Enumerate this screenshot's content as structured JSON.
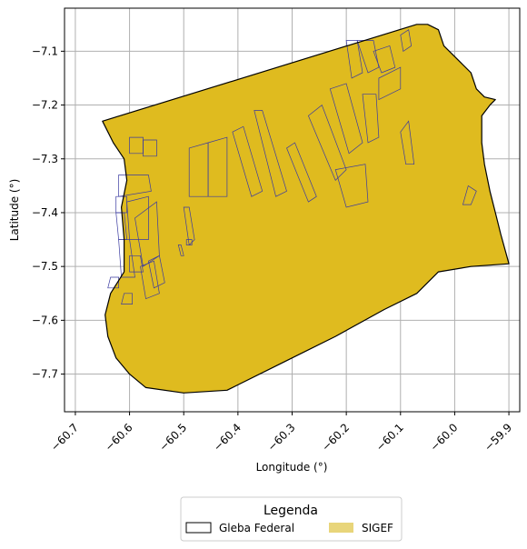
{
  "chart_data": {
    "type": "map",
    "xlabel": "Longitude (°)",
    "ylabel": "Latitude (°)",
    "xlim": [
      -60.72,
      -59.88
    ],
    "ylim": [
      -7.77,
      -7.02
    ],
    "grid": true,
    "xticks": [
      {
        "value": -60.7,
        "label": "−60.7"
      },
      {
        "value": -60.6,
        "label": "−60.6"
      },
      {
        "value": -60.5,
        "label": "−60.5"
      },
      {
        "value": -60.4,
        "label": "−60.4"
      },
      {
        "value": -60.3,
        "label": "−60.3"
      },
      {
        "value": -60.2,
        "label": "−60.2"
      },
      {
        "value": -60.1,
        "label": "−60.1"
      },
      {
        "value": -60.0,
        "label": "−60.0"
      },
      {
        "value": -59.9,
        "label": "−59.9"
      }
    ],
    "yticks": [
      {
        "value": -7.1,
        "label": "−7.1"
      },
      {
        "value": -7.2,
        "label": "−7.2"
      },
      {
        "value": -7.3,
        "label": "−7.3"
      },
      {
        "value": -7.4,
        "label": "−7.4"
      },
      {
        "value": -7.5,
        "label": "−7.5"
      },
      {
        "value": -7.6,
        "label": "−7.6"
      },
      {
        "value": -7.7,
        "label": "−7.7"
      }
    ],
    "colors": {
      "sigef_fill": "#dfbb1f",
      "sigef_edge": "#3a3aa0",
      "gleba_edge": "#000000",
      "grid": "#b0b0b0",
      "legend_sigef": "#e8d57a"
    },
    "gleba_boundary": [
      [
        -60.65,
        -7.23
      ],
      [
        -60.07,
        -7.05
      ],
      [
        -60.05,
        -7.05
      ],
      [
        -60.03,
        -7.06
      ],
      [
        -60.02,
        -7.09
      ],
      [
        -59.99,
        -7.12
      ],
      [
        -59.97,
        -7.14
      ],
      [
        -59.96,
        -7.17
      ],
      [
        -59.945,
        -7.185
      ],
      [
        -59.925,
        -7.19
      ],
      [
        -59.935,
        -7.2
      ],
      [
        -59.95,
        -7.22
      ],
      [
        -59.95,
        -7.27
      ],
      [
        -59.945,
        -7.31
      ],
      [
        -59.935,
        -7.36
      ],
      [
        -59.925,
        -7.4
      ],
      [
        -59.915,
        -7.44
      ],
      [
        -59.9,
        -7.495
      ],
      [
        -59.97,
        -7.5
      ],
      [
        -60.03,
        -7.51
      ],
      [
        -60.07,
        -7.55
      ],
      [
        -60.13,
        -7.58
      ],
      [
        -60.22,
        -7.63
      ],
      [
        -60.32,
        -7.68
      ],
      [
        -60.4,
        -7.72
      ],
      [
        -60.42,
        -7.73
      ],
      [
        -60.5,
        -7.735
      ],
      [
        -60.57,
        -7.725
      ],
      [
        -60.6,
        -7.7
      ],
      [
        -60.625,
        -7.67
      ],
      [
        -60.64,
        -7.63
      ],
      [
        -60.645,
        -7.59
      ],
      [
        -60.635,
        -7.55
      ],
      [
        -60.61,
        -7.51
      ],
      [
        -60.61,
        -7.45
      ],
      [
        -60.615,
        -7.39
      ],
      [
        -60.605,
        -7.34
      ],
      [
        -60.61,
        -7.3
      ],
      [
        -60.63,
        -7.27
      ],
      [
        -60.65,
        -7.23
      ]
    ],
    "sigef_parcels": [
      [
        [
          -60.6,
          -7.26
        ],
        [
          -60.575,
          -7.26
        ],
        [
          -60.575,
          -7.29
        ],
        [
          -60.6,
          -7.29
        ]
      ],
      [
        [
          -60.575,
          -7.265
        ],
        [
          -60.55,
          -7.265
        ],
        [
          -60.55,
          -7.295
        ],
        [
          -60.575,
          -7.295
        ]
      ],
      [
        [
          -60.49,
          -7.28
        ],
        [
          -60.455,
          -7.27
        ],
        [
          -60.455,
          -7.37
        ],
        [
          -60.49,
          -7.37
        ]
      ],
      [
        [
          -60.455,
          -7.27
        ],
        [
          -60.42,
          -7.26
        ],
        [
          -60.42,
          -7.37
        ],
        [
          -60.455,
          -7.37
        ]
      ],
      [
        [
          -60.41,
          -7.25
        ],
        [
          -60.39,
          -7.24
        ],
        [
          -60.355,
          -7.36
        ],
        [
          -60.375,
          -7.37
        ]
      ],
      [
        [
          -60.37,
          -7.21
        ],
        [
          -60.355,
          -7.21
        ],
        [
          -60.31,
          -7.36
        ],
        [
          -60.33,
          -7.37
        ]
      ],
      [
        [
          -60.31,
          -7.28
        ],
        [
          -60.295,
          -7.27
        ],
        [
          -60.255,
          -7.37
        ],
        [
          -60.27,
          -7.38
        ]
      ],
      [
        [
          -60.27,
          -7.22
        ],
        [
          -60.245,
          -7.2
        ],
        [
          -60.2,
          -7.32
        ],
        [
          -60.22,
          -7.34
        ]
      ],
      [
        [
          -60.23,
          -7.17
        ],
        [
          -60.2,
          -7.16
        ],
        [
          -60.17,
          -7.27
        ],
        [
          -60.195,
          -7.29
        ]
      ],
      [
        [
          -60.22,
          -7.32
        ],
        [
          -60.165,
          -7.31
        ],
        [
          -60.16,
          -7.38
        ],
        [
          -60.2,
          -7.39
        ]
      ],
      [
        [
          -60.2,
          -7.08
        ],
        [
          -60.18,
          -7.08
        ],
        [
          -60.17,
          -7.14
        ],
        [
          -60.19,
          -7.15
        ]
      ],
      [
        [
          -60.18,
          -7.08
        ],
        [
          -60.15,
          -7.08
        ],
        [
          -60.14,
          -7.13
        ],
        [
          -60.16,
          -7.14
        ]
      ],
      [
        [
          -60.15,
          -7.1
        ],
        [
          -60.12,
          -7.09
        ],
        [
          -60.11,
          -7.13
        ],
        [
          -60.135,
          -7.14
        ]
      ],
      [
        [
          -60.14,
          -7.15
        ],
        [
          -60.1,
          -7.13
        ],
        [
          -60.1,
          -7.17
        ],
        [
          -60.14,
          -7.19
        ]
      ],
      [
        [
          -60.17,
          -7.18
        ],
        [
          -60.145,
          -7.18
        ],
        [
          -60.14,
          -7.26
        ],
        [
          -60.16,
          -7.27
        ]
      ],
      [
        [
          -60.1,
          -7.07
        ],
        [
          -60.085,
          -7.06
        ],
        [
          -60.08,
          -7.09
        ],
        [
          -60.095,
          -7.1
        ]
      ],
      [
        [
          -60.1,
          -7.25
        ],
        [
          -60.085,
          -7.23
        ],
        [
          -60.075,
          -7.31
        ],
        [
          -60.09,
          -7.31
        ]
      ],
      [
        [
          -59.975,
          -7.35
        ],
        [
          -59.96,
          -7.36
        ],
        [
          -59.97,
          -7.385
        ],
        [
          -59.985,
          -7.385
        ]
      ],
      [
        [
          -60.62,
          -7.33
        ],
        [
          -60.565,
          -7.33
        ],
        [
          -60.56,
          -7.36
        ],
        [
          -60.62,
          -7.37
        ]
      ],
      [
        [
          -60.625,
          -7.37
        ],
        [
          -60.605,
          -7.37
        ],
        [
          -60.605,
          -7.4
        ],
        [
          -60.625,
          -7.4
        ]
      ],
      [
        [
          -60.605,
          -7.38
        ],
        [
          -60.565,
          -7.37
        ],
        [
          -60.565,
          -7.45
        ],
        [
          -60.6,
          -7.45
        ]
      ],
      [
        [
          -60.625,
          -7.4
        ],
        [
          -60.61,
          -7.4
        ],
        [
          -60.605,
          -7.45
        ],
        [
          -60.62,
          -7.45
        ]
      ],
      [
        [
          -60.62,
          -7.45
        ],
        [
          -60.6,
          -7.45
        ],
        [
          -60.59,
          -7.52
        ],
        [
          -60.615,
          -7.52
        ]
      ],
      [
        [
          -60.59,
          -7.41
        ],
        [
          -60.55,
          -7.38
        ],
        [
          -60.545,
          -7.48
        ],
        [
          -60.575,
          -7.5
        ]
      ],
      [
        [
          -60.6,
          -7.48
        ],
        [
          -60.58,
          -7.48
        ],
        [
          -60.575,
          -7.51
        ],
        [
          -60.6,
          -7.51
        ]
      ],
      [
        [
          -60.58,
          -7.5
        ],
        [
          -60.555,
          -7.49
        ],
        [
          -60.545,
          -7.55
        ],
        [
          -60.57,
          -7.56
        ]
      ],
      [
        [
          -60.565,
          -7.49
        ],
        [
          -60.545,
          -7.48
        ],
        [
          -60.535,
          -7.53
        ],
        [
          -60.555,
          -7.54
        ]
      ],
      [
        [
          -60.61,
          -7.55
        ],
        [
          -60.595,
          -7.55
        ],
        [
          -60.595,
          -7.57
        ],
        [
          -60.615,
          -7.57
        ]
      ],
      [
        [
          -60.635,
          -7.52
        ],
        [
          -60.62,
          -7.52
        ],
        [
          -60.62,
          -7.54
        ],
        [
          -60.64,
          -7.54
        ]
      ],
      [
        [
          -60.5,
          -7.39
        ],
        [
          -60.49,
          -7.39
        ],
        [
          -60.48,
          -7.45
        ],
        [
          -60.49,
          -7.46
        ]
      ],
      [
        [
          -60.495,
          -7.45
        ],
        [
          -60.485,
          -7.45
        ],
        [
          -60.485,
          -7.46
        ],
        [
          -60.495,
          -7.46
        ]
      ],
      [
        [
          -60.51,
          -7.46
        ],
        [
          -60.505,
          -7.46
        ],
        [
          -60.5,
          -7.48
        ],
        [
          -60.505,
          -7.48
        ]
      ]
    ],
    "legend": {
      "title": "Legenda",
      "placement": "bottom-center",
      "entries": [
        {
          "label": "Gleba Federal",
          "kind": "outline"
        },
        {
          "label": "SIGEF",
          "kind": "fill"
        }
      ]
    }
  }
}
